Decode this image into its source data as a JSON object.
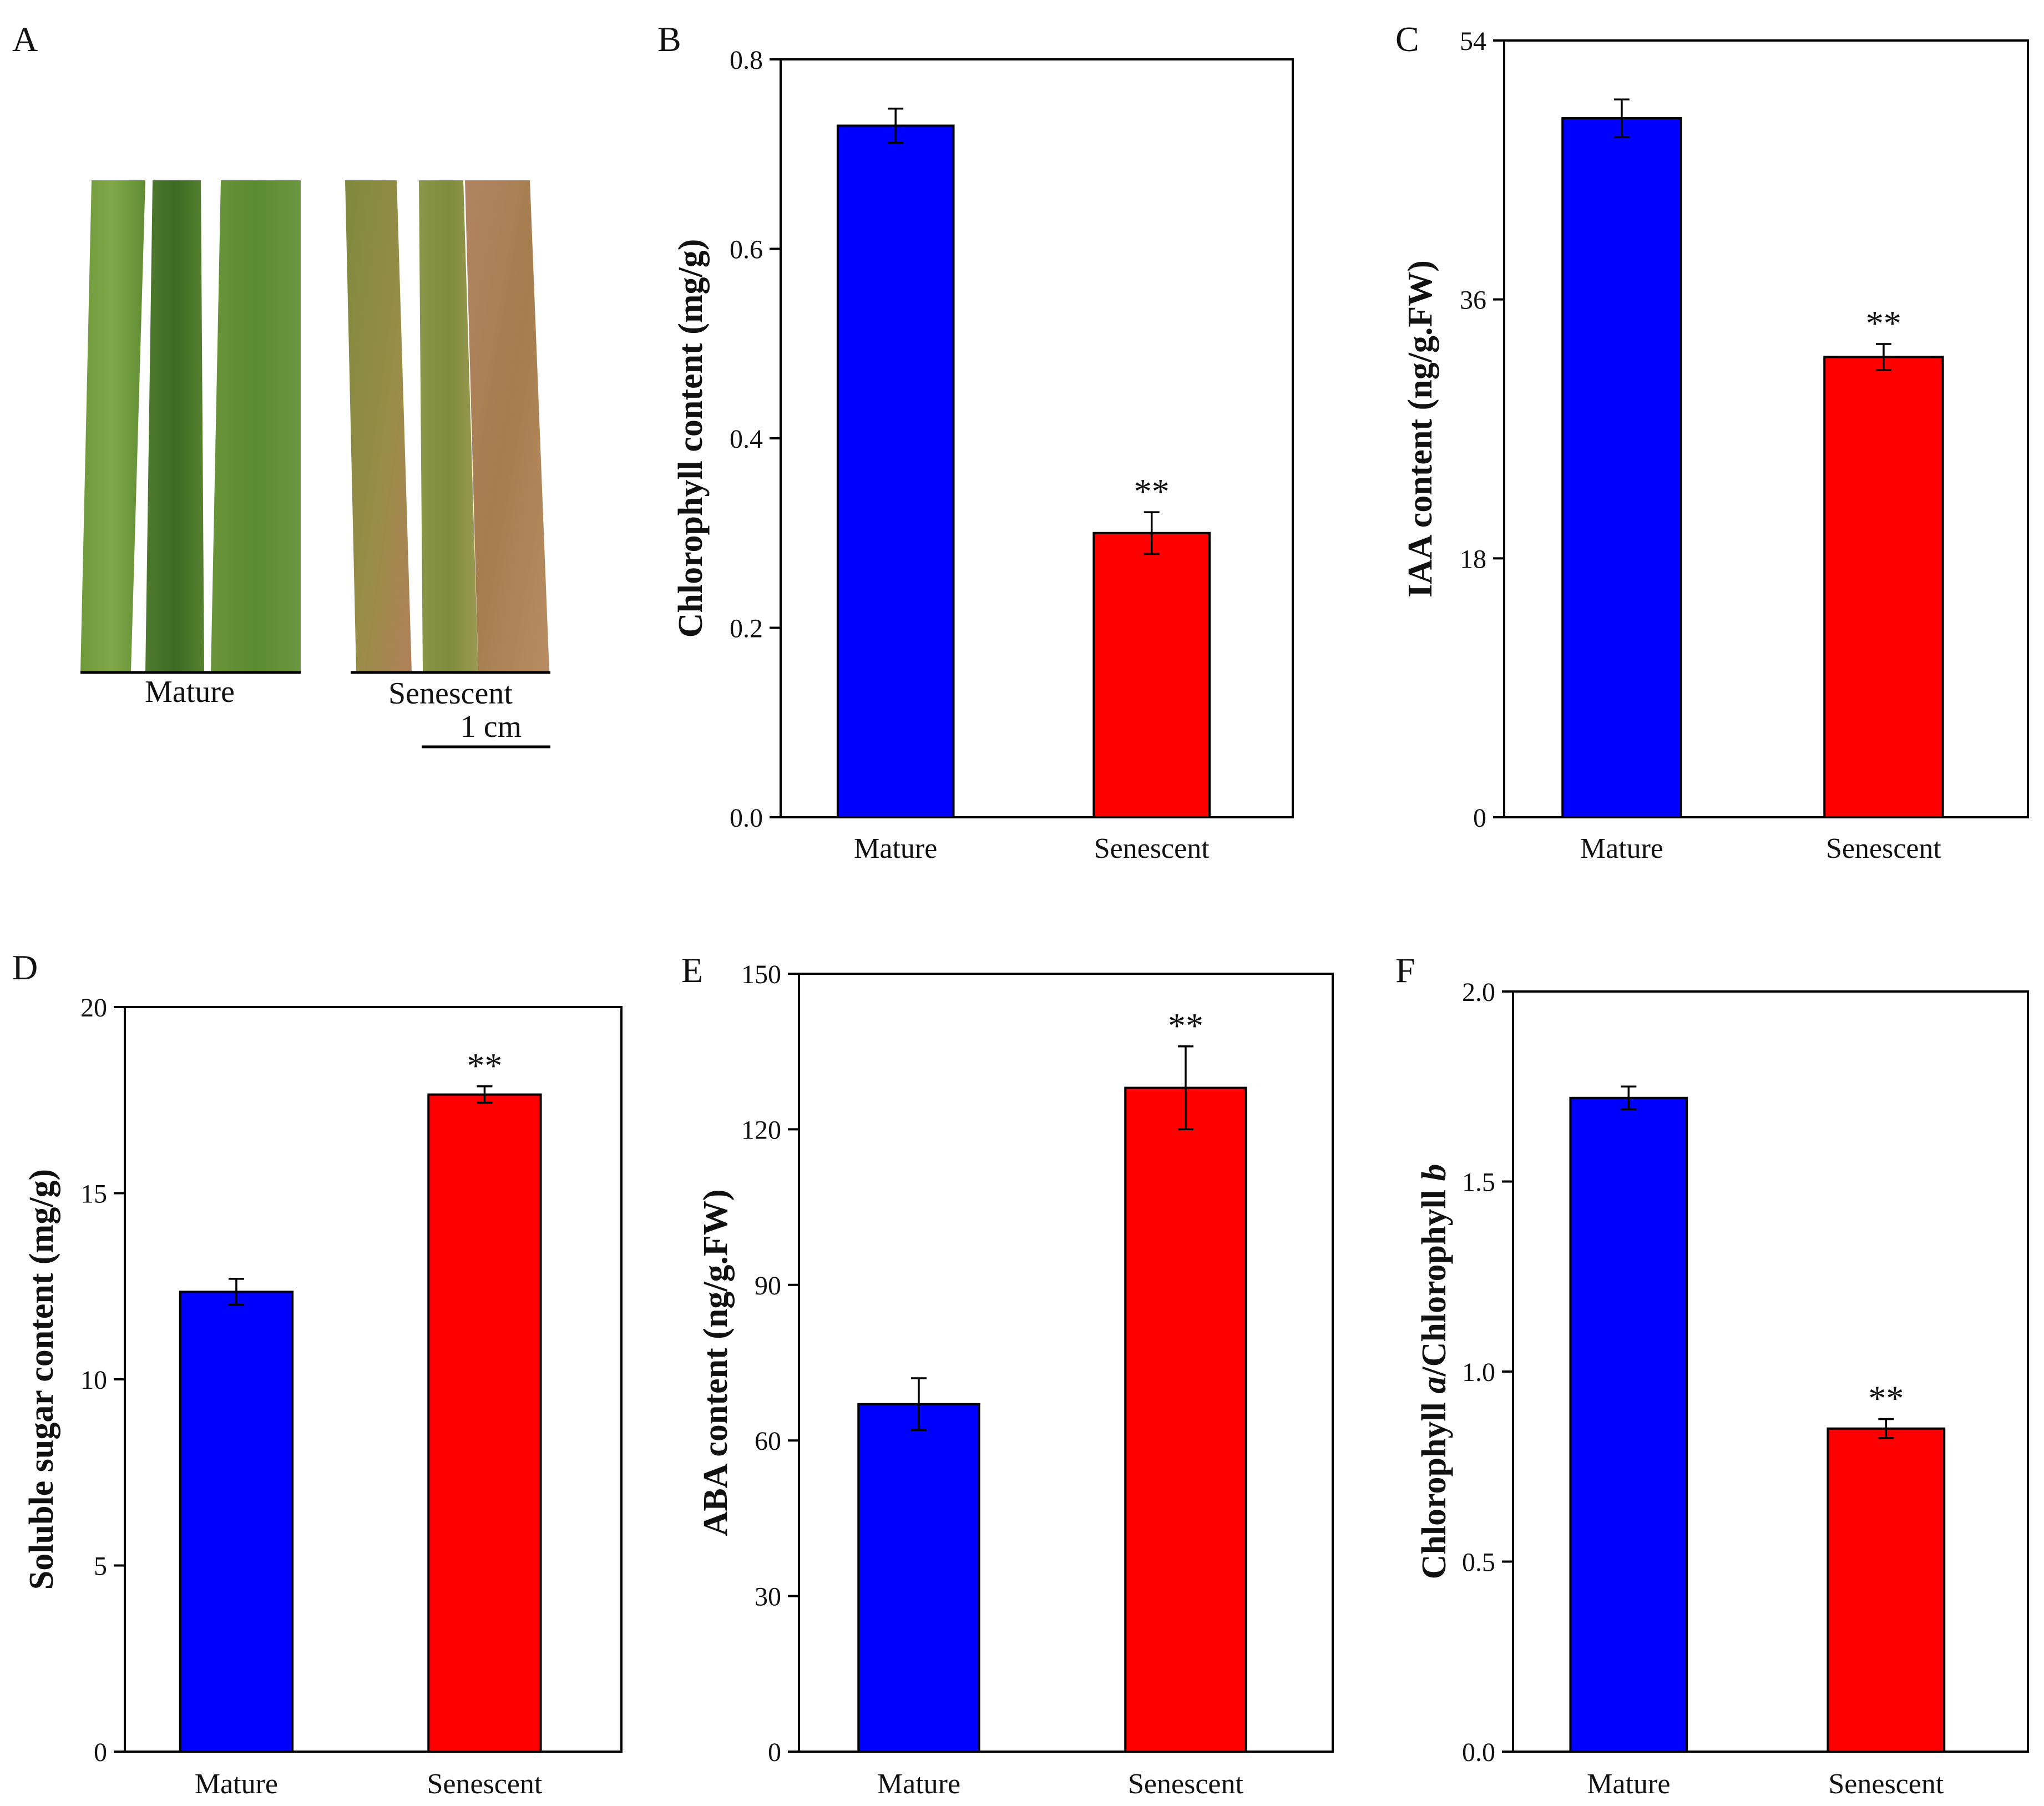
{
  "figure": {
    "panel_a": {
      "label": "A",
      "groups": [
        "Mature",
        "Senescent"
      ],
      "scale_bar": "1 cm"
    }
  },
  "colors": {
    "mature": "#0000ff",
    "senescent": "#ff0000",
    "axis": "#000000"
  },
  "chart_data": [
    {
      "panel": "B",
      "type": "bar",
      "categories": [
        "Mature",
        "Senescent"
      ],
      "values": [
        0.73,
        0.3
      ],
      "errors": [
        0.018,
        0.022
      ],
      "significance": [
        "",
        "**"
      ],
      "ylabel": "Chlorophyll content (mg/g)",
      "ylim": [
        0,
        0.8
      ],
      "yticks": [
        0.0,
        0.2,
        0.4,
        0.6,
        0.8
      ],
      "ytick_labels": [
        "0.0",
        "0.2",
        "0.4",
        "0.6",
        "0.8"
      ]
    },
    {
      "panel": "C",
      "type": "bar",
      "categories": [
        "Mature",
        "Senescent"
      ],
      "values": [
        48.6,
        32.0
      ],
      "errors": [
        1.3,
        0.9
      ],
      "significance": [
        "",
        "**"
      ],
      "ylabel": "IAA content (ng/g.FW)",
      "ylim": [
        0,
        54
      ],
      "yticks": [
        0,
        18,
        36,
        54
      ],
      "ytick_labels": [
        "0",
        "18",
        "36",
        "54"
      ]
    },
    {
      "panel": "D",
      "type": "bar",
      "categories": [
        "Mature",
        "Senescent"
      ],
      "values": [
        12.35,
        17.65
      ],
      "errors": [
        0.35,
        0.22
      ],
      "significance": [
        "",
        "**"
      ],
      "ylabel": "Soluble sugar content (mg/g)",
      "ylim": [
        0,
        20
      ],
      "yticks": [
        0,
        5,
        10,
        15,
        20
      ],
      "ytick_labels": [
        "0",
        "5",
        "10",
        "15",
        "20"
      ]
    },
    {
      "panel": "E",
      "type": "bar",
      "categories": [
        "Mature",
        "Senescent"
      ],
      "values": [
        67,
        128
      ],
      "errors": [
        5,
        8
      ],
      "significance": [
        "",
        "**"
      ],
      "ylabel": "ABA content (ng/g.FW)",
      "ylim": [
        0,
        150
      ],
      "yticks": [
        0,
        30,
        60,
        90,
        120,
        150
      ],
      "ytick_labels": [
        "0",
        "30",
        "60",
        "90",
        "120",
        "150"
      ]
    },
    {
      "panel": "F",
      "type": "bar",
      "categories": [
        "Mature",
        "Senescent"
      ],
      "values": [
        1.72,
        0.85
      ],
      "errors": [
        0.03,
        0.025
      ],
      "significance": [
        "",
        "**"
      ],
      "ylabel_parts": [
        "Chlorophyll ",
        "a",
        "/Chlorophyll ",
        "b"
      ],
      "ylim": [
        0,
        2.0
      ],
      "yticks": [
        0.0,
        0.5,
        1.0,
        1.5,
        2.0
      ],
      "ytick_labels": [
        "0.0",
        "0.5",
        "1.0",
        "1.5",
        "2.0"
      ]
    }
  ]
}
